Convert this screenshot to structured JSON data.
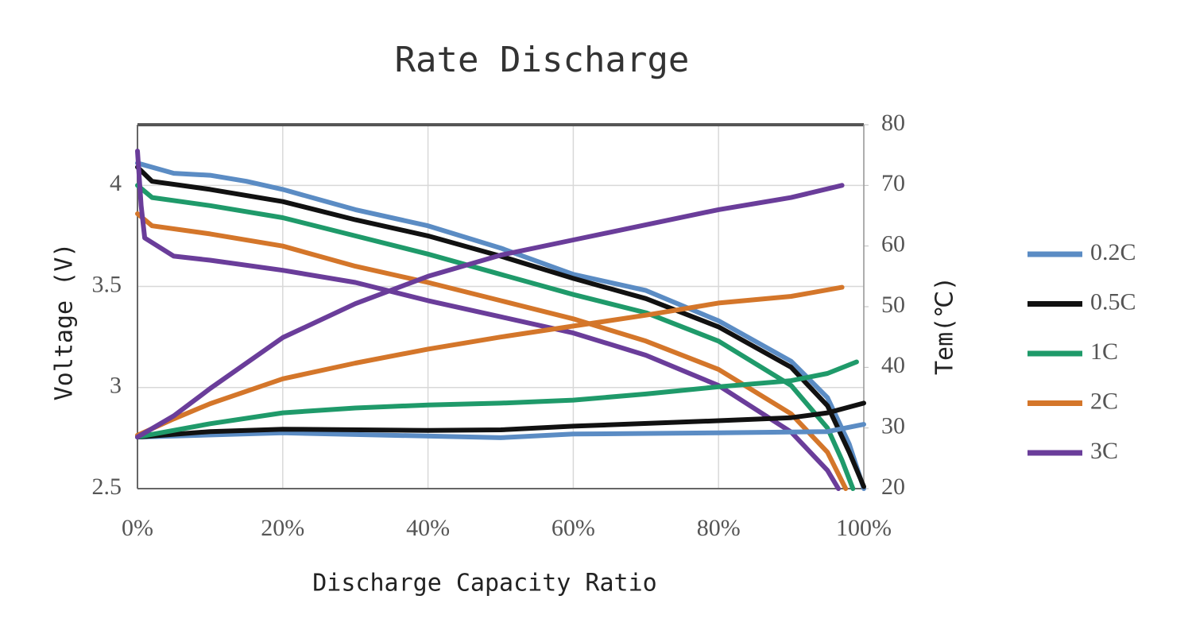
{
  "chart_data": {
    "type": "line",
    "title": "Rate Discharge",
    "xlabel": "Discharge Capacity Ratio",
    "ylabel": "Voltage (V)",
    "y2label": "Tem(℃)",
    "xlim": [
      0,
      100
    ],
    "xticks": [
      {
        "value": 0,
        "label": "0%"
      },
      {
        "value": 20,
        "label": "20%"
      },
      {
        "value": 40,
        "label": "40%"
      },
      {
        "value": 60,
        "label": "60%"
      },
      {
        "value": 80,
        "label": "80%"
      },
      {
        "value": 100,
        "label": "100%"
      }
    ],
    "ylim": [
      2.5,
      4.3
    ],
    "yticks": [
      2.5,
      3,
      3.5,
      4
    ],
    "y2lim": [
      20,
      80
    ],
    "y2ticks": [
      20,
      30,
      40,
      50,
      60,
      70,
      80
    ],
    "grid": true,
    "legend": "right",
    "series": [
      {
        "name": "0.2C",
        "color": "#5b8cc4",
        "x": [
          0,
          5,
          10,
          15,
          20,
          30,
          40,
          50,
          60,
          70,
          80,
          90,
          95,
          98,
          100
        ],
        "values": [
          4.11,
          4.06,
          4.05,
          4.02,
          3.98,
          3.88,
          3.8,
          3.69,
          3.56,
          3.48,
          3.33,
          3.13,
          2.95,
          2.72,
          2.5
        ]
      },
      {
        "name": "0.5C",
        "color": "#111111",
        "x": [
          0,
          2,
          10,
          20,
          30,
          40,
          50,
          60,
          70,
          80,
          90,
          95,
          98,
          100
        ],
        "values": [
          4.09,
          4.02,
          3.98,
          3.92,
          3.83,
          3.75,
          3.65,
          3.54,
          3.44,
          3.3,
          3.1,
          2.91,
          2.68,
          2.51
        ]
      },
      {
        "name": "1C",
        "color": "#1f9a6a",
        "x": [
          0,
          2,
          10,
          20,
          30,
          40,
          50,
          60,
          70,
          80,
          90,
          95,
          97,
          98.5
        ],
        "values": [
          4.0,
          3.94,
          3.9,
          3.84,
          3.75,
          3.66,
          3.56,
          3.46,
          3.37,
          3.23,
          3.01,
          2.8,
          2.64,
          2.5
        ]
      },
      {
        "name": "2C",
        "color": "#d4762a",
        "x": [
          0,
          2,
          10,
          20,
          30,
          40,
          50,
          60,
          70,
          80,
          90,
          95,
          97.5
        ],
        "values": [
          3.86,
          3.8,
          3.76,
          3.7,
          3.6,
          3.52,
          3.43,
          3.34,
          3.23,
          3.09,
          2.87,
          2.68,
          2.5
        ]
      },
      {
        "name": "3C",
        "color": "#6a3d9a",
        "x": [
          0,
          0.5,
          1,
          5,
          10,
          20,
          30,
          40,
          50,
          60,
          70,
          80,
          90,
          95,
          96.5
        ],
        "values": [
          4.17,
          3.9,
          3.74,
          3.65,
          3.63,
          3.58,
          3.52,
          3.43,
          3.35,
          3.27,
          3.16,
          3.01,
          2.78,
          2.59,
          2.5
        ]
      },
      {
        "color": "#5b8cc4",
        "axis": "y2",
        "x": [
          0,
          20,
          50,
          60,
          80,
          95,
          100
        ],
        "values": [
          28.5,
          29.2,
          28.4,
          29,
          29.2,
          29.4,
          30.6
        ]
      },
      {
        "color": "#111111",
        "axis": "y2",
        "x": [
          0,
          10,
          20,
          40,
          50,
          60,
          80,
          90,
          95,
          100
        ],
        "values": [
          28.5,
          29.4,
          29.8,
          29.6,
          29.7,
          30.3,
          31.2,
          31.7,
          32.5,
          34.1
        ]
      },
      {
        "color": "#1f9a6a",
        "axis": "y2",
        "x": [
          0,
          10,
          20,
          30,
          40,
          50,
          60,
          70,
          80,
          90,
          95,
          99
        ],
        "values": [
          28.5,
          30.7,
          32.5,
          33.3,
          33.8,
          34.1,
          34.6,
          35.6,
          36.8,
          37.8,
          39,
          40.9
        ]
      },
      {
        "color": "#d4762a",
        "axis": "y2",
        "x": [
          0,
          5,
          10,
          20,
          30,
          40,
          50,
          60,
          70,
          80,
          90,
          97
        ],
        "values": [
          28.8,
          31.5,
          34,
          38.1,
          40.7,
          43,
          45,
          46.8,
          48.6,
          50.6,
          51.7,
          53.2
        ]
      },
      {
        "color": "#6a3d9a",
        "axis": "y2",
        "x": [
          0,
          5,
          10,
          20,
          30,
          40,
          50,
          60,
          70,
          80,
          90,
          97
        ],
        "values": [
          28.5,
          32,
          36.5,
          44.9,
          50.5,
          55,
          58.5,
          61,
          63.5,
          66,
          68,
          70
        ]
      }
    ]
  }
}
